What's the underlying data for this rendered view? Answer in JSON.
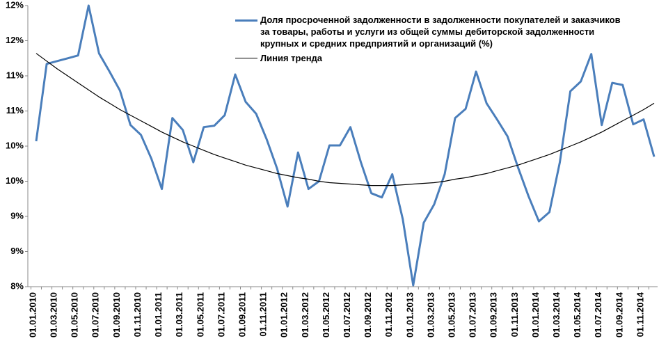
{
  "chart_data": {
    "type": "line",
    "categories": [
      "01.01.2010",
      null,
      "01.03.2010",
      null,
      "01.05.2010",
      null,
      "01.07.2010",
      null,
      "01.09.2010",
      null,
      "01.11.2010",
      null,
      "01.01.2011",
      null,
      "01.03.2011",
      null,
      "01.05.2011",
      null,
      "01.07.2011",
      null,
      "01.09.2011",
      null,
      "01.11.2011",
      null,
      "01.01.2012",
      null,
      "01.03.2012",
      null,
      "01.05.2012",
      null,
      "01.07.2012",
      null,
      "01.09.2012",
      null,
      "01.11.2012",
      null,
      "01.01.2013",
      null,
      "01.03.2013",
      null,
      "01.05.2013",
      null,
      "01.07.2013",
      null,
      "01.09.2013",
      null,
      "01.11.2013",
      null,
      "01.01.2014",
      null,
      "01.03.2014",
      null,
      "01.05.2014",
      null,
      "01.07.2014",
      null,
      "01.09.2014",
      null,
      "01.11.2014",
      null
    ],
    "series": [
      {
        "name": "Доля просроченной задолженности в задолженности покупателей и заказчиков за товары, работы и услуги  из общей суммы  дебиторской задолженности крупных и средних предприятий и организаций (%)",
        "color": "#4a7ebb",
        "values": [
          10.07,
          11.17,
          11.21,
          11.25,
          11.29,
          12.0,
          11.32,
          11.06,
          10.79,
          10.3,
          10.16,
          9.82,
          9.39,
          10.4,
          10.23,
          9.77,
          10.27,
          10.29,
          10.44,
          11.02,
          10.63,
          10.46,
          10.1,
          9.68,
          9.14,
          9.91,
          9.39,
          9.5,
          10.01,
          10.01,
          10.27,
          9.77,
          9.33,
          9.27,
          9.6,
          8.96,
          8.02,
          8.91,
          9.17,
          9.6,
          10.4,
          10.53,
          11.06,
          10.61,
          10.38,
          10.14,
          9.7,
          9.29,
          8.93,
          9.06,
          9.77,
          10.78,
          10.92,
          11.31,
          10.3,
          10.9,
          10.87,
          10.31,
          10.38,
          9.85
        ]
      },
      {
        "name": "Линия тренда",
        "color": "#000000",
        "values": [
          11.32,
          11.21,
          11.1,
          11.0,
          10.9,
          10.8,
          10.7,
          10.61,
          10.52,
          10.44,
          10.36,
          10.28,
          10.2,
          10.13,
          10.06,
          10.0,
          9.94,
          9.88,
          9.83,
          9.78,
          9.73,
          9.69,
          9.65,
          9.61,
          9.58,
          9.55,
          9.53,
          9.5,
          9.48,
          9.47,
          9.46,
          9.45,
          9.44,
          9.44,
          9.44,
          9.45,
          9.46,
          9.47,
          9.48,
          9.5,
          9.53,
          9.55,
          9.58,
          9.61,
          9.65,
          9.69,
          9.73,
          9.78,
          9.83,
          9.88,
          9.94,
          10.0,
          10.06,
          10.13,
          10.2,
          10.28,
          10.36,
          10.44,
          10.52,
          10.61
        ]
      }
    ],
    "ylim": [
      8,
      12
    ],
    "yticks": [
      {
        "value": 8,
        "label": "8%"
      },
      {
        "value": 8.5,
        "label": "9%"
      },
      {
        "value": 9,
        "label": "9%"
      },
      {
        "value": 9.5,
        "label": "10%"
      },
      {
        "value": 10,
        "label": "10%"
      },
      {
        "value": 10.5,
        "label": "11%"
      },
      {
        "value": 11,
        "label": "11%"
      },
      {
        "value": 11.5,
        "label": "12%"
      },
      {
        "value": 12,
        "label": "12%"
      }
    ]
  }
}
